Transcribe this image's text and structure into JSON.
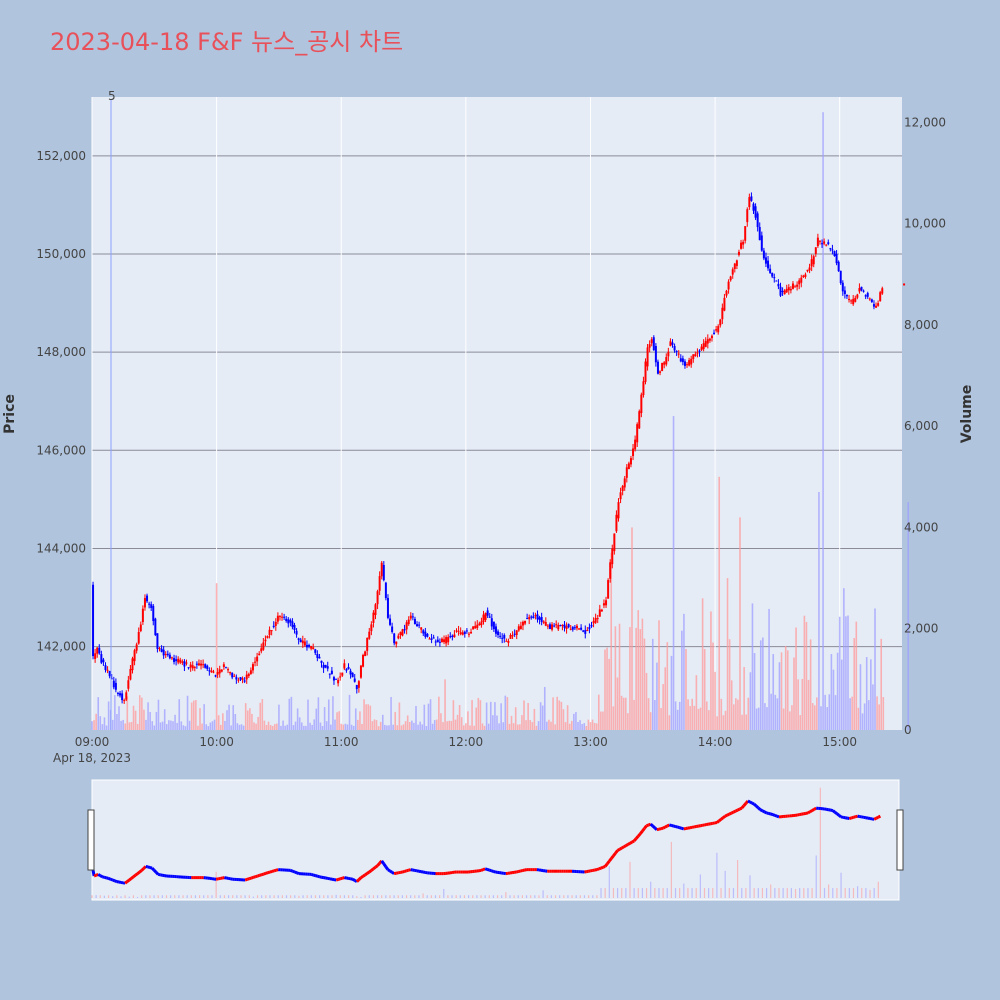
{
  "chart_data": {
    "type": "candlestick",
    "title": "2023-04-18 F&F 뉴스_공시 차트",
    "ylabel": "Price",
    "y2label": "Volume",
    "annotation": "5",
    "x_ticks": [
      "09:00",
      "10:00",
      "11:00",
      "12:00",
      "13:00",
      "14:00",
      "15:00"
    ],
    "x_date_label": "Apr 18, 2023",
    "price_ticks": [
      "142,000",
      "144,000",
      "146,000",
      "148,000",
      "150,000",
      "152,000"
    ],
    "volume_ticks": [
      "0",
      "2,000",
      "4,000",
      "6,000",
      "8,000",
      "10,000",
      "12,000"
    ],
    "price_range": [
      140300,
      153200
    ],
    "volume_range": [
      0,
      12500
    ],
    "session_minutes": [
      0,
      390
    ],
    "up_color": "#ff0000",
    "down_color": "#0000ff",
    "price_path": [
      [
        0,
        143300
      ],
      [
        1,
        141800
      ],
      [
        3,
        142000
      ],
      [
        5,
        141700
      ],
      [
        8,
        141500
      ],
      [
        12,
        141100
      ],
      [
        16,
        140900
      ],
      [
        20,
        141700
      ],
      [
        24,
        142500
      ],
      [
        26,
        143000
      ],
      [
        29,
        142800
      ],
      [
        32,
        142000
      ],
      [
        36,
        141800
      ],
      [
        42,
        141700
      ],
      [
        48,
        141600
      ],
      [
        54,
        141600
      ],
      [
        60,
        141400
      ],
      [
        64,
        141600
      ],
      [
        68,
        141400
      ],
      [
        74,
        141300
      ],
      [
        80,
        141800
      ],
      [
        86,
        142300
      ],
      [
        90,
        142600
      ],
      [
        96,
        142500
      ],
      [
        100,
        142100
      ],
      [
        106,
        142000
      ],
      [
        110,
        141700
      ],
      [
        114,
        141500
      ],
      [
        118,
        141300
      ],
      [
        122,
        141600
      ],
      [
        126,
        141400
      ],
      [
        128,
        141100
      ],
      [
        130,
        141600
      ],
      [
        134,
        142300
      ],
      [
        138,
        143100
      ],
      [
        140,
        143700
      ],
      [
        143,
        142600
      ],
      [
        146,
        142100
      ],
      [
        150,
        142300
      ],
      [
        154,
        142600
      ],
      [
        158,
        142400
      ],
      [
        162,
        142200
      ],
      [
        166,
        142100
      ],
      [
        170,
        142100
      ],
      [
        176,
        142300
      ],
      [
        182,
        142300
      ],
      [
        188,
        142500
      ],
      [
        190,
        142700
      ],
      [
        195,
        142300
      ],
      [
        200,
        142100
      ],
      [
        205,
        142300
      ],
      [
        210,
        142600
      ],
      [
        215,
        142600
      ],
      [
        220,
        142400
      ],
      [
        225,
        142400
      ],
      [
        232,
        142400
      ],
      [
        238,
        142300
      ],
      [
        244,
        142600
      ],
      [
        248,
        143000
      ],
      [
        251,
        144000
      ],
      [
        254,
        145000
      ],
      [
        258,
        145600
      ],
      [
        262,
        146200
      ],
      [
        265,
        147100
      ],
      [
        268,
        148100
      ],
      [
        270,
        148300
      ],
      [
        273,
        147600
      ],
      [
        276,
        147800
      ],
      [
        279,
        148200
      ],
      [
        282,
        148000
      ],
      [
        286,
        147700
      ],
      [
        290,
        147900
      ],
      [
        296,
        148200
      ],
      [
        302,
        148500
      ],
      [
        306,
        149300
      ],
      [
        310,
        149800
      ],
      [
        314,
        150300
      ],
      [
        317,
        151200
      ],
      [
        320,
        150800
      ],
      [
        323,
        150100
      ],
      [
        326,
        149700
      ],
      [
        329,
        149500
      ],
      [
        332,
        149200
      ],
      [
        336,
        149300
      ],
      [
        340,
        149400
      ],
      [
        346,
        149700
      ],
      [
        350,
        150300
      ],
      [
        354,
        150200
      ],
      [
        358,
        150000
      ],
      [
        362,
        149200
      ],
      [
        366,
        149000
      ],
      [
        370,
        149300
      ],
      [
        374,
        149100
      ],
      [
        378,
        148900
      ],
      [
        381,
        149300
      ]
    ],
    "volume_bars": [
      [
        2,
        320
      ],
      [
        6,
        250
      ],
      [
        10,
        200
      ],
      [
        14,
        180
      ],
      [
        18,
        150
      ],
      [
        22,
        120
      ],
      [
        40,
        300
      ],
      [
        60,
        2900
      ],
      [
        78,
        150
      ],
      [
        100,
        250
      ],
      [
        118,
        350
      ],
      [
        128,
        200
      ],
      [
        130,
        120
      ],
      [
        140,
        300
      ],
      [
        160,
        500
      ],
      [
        170,
        1000
      ],
      [
        200,
        650
      ],
      [
        218,
        850
      ],
      [
        250,
        3500
      ],
      [
        260,
        4000
      ],
      [
        265,
        2200
      ],
      [
        270,
        1800
      ],
      [
        280,
        6200
      ],
      [
        286,
        1600
      ],
      [
        294,
        2600
      ],
      [
        302,
        5000
      ],
      [
        306,
        3000
      ],
      [
        312,
        4200
      ],
      [
        318,
        2500
      ],
      [
        328,
        1500
      ],
      [
        340,
        1000
      ],
      [
        350,
        4700
      ],
      [
        352,
        12200
      ],
      [
        356,
        1500
      ],
      [
        362,
        2800
      ],
      [
        370,
        1300
      ],
      [
        376,
        900
      ],
      [
        380,
        1800
      ],
      [
        393,
        4500
      ]
    ],
    "timestamp_note": null
  }
}
